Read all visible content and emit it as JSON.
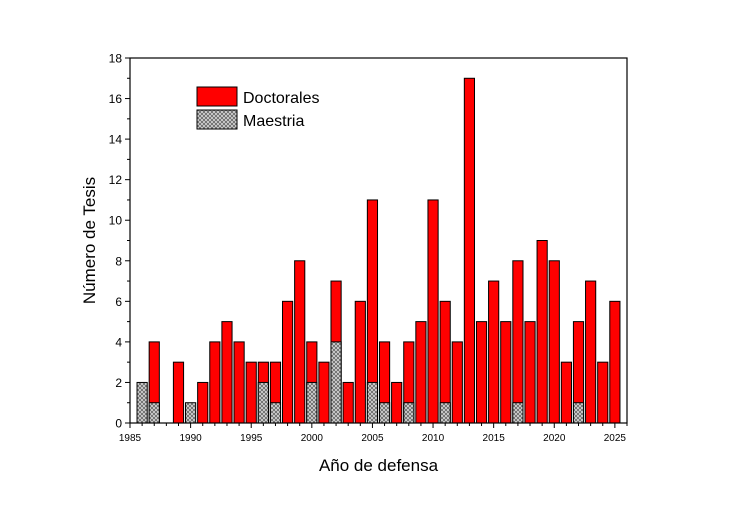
{
  "chart_data": {
    "type": "bar",
    "xlabel": "Año de defensa",
    "ylabel": "Número de Tesis",
    "xlim": [
      1985,
      2026
    ],
    "ylim": [
      0,
      18
    ],
    "x_ticks": [
      1985,
      1990,
      1995,
      2000,
      2005,
      2010,
      2015,
      2020,
      2025
    ],
    "y_ticks": [
      0,
      2,
      4,
      6,
      8,
      10,
      12,
      14,
      16,
      18
    ],
    "grid": false,
    "legend_position": "top-left",
    "series": [
      {
        "name": "Doctorales",
        "color": "#ff0000",
        "pattern": "solid",
        "data": [
          [
            1987,
            4
          ],
          [
            1989,
            3
          ],
          [
            1991,
            2
          ],
          [
            1992,
            4
          ],
          [
            1993,
            5
          ],
          [
            1994,
            4
          ],
          [
            1995,
            3
          ],
          [
            1996,
            3
          ],
          [
            1997,
            3
          ],
          [
            1998,
            6
          ],
          [
            1999,
            8
          ],
          [
            2000,
            4
          ],
          [
            2001,
            3
          ],
          [
            2002,
            7
          ],
          [
            2003,
            2
          ],
          [
            2004,
            6
          ],
          [
            2005,
            11
          ],
          [
            2006,
            4
          ],
          [
            2007,
            2
          ],
          [
            2008,
            4
          ],
          [
            2009,
            5
          ],
          [
            2010,
            11
          ],
          [
            2011,
            6
          ],
          [
            2012,
            4
          ],
          [
            2013,
            17
          ],
          [
            2014,
            5
          ],
          [
            2015,
            7
          ],
          [
            2016,
            5
          ],
          [
            2017,
            8
          ],
          [
            2018,
            5
          ],
          [
            2019,
            9
          ],
          [
            2020,
            8
          ],
          [
            2021,
            3
          ],
          [
            2022,
            5
          ],
          [
            2023,
            7
          ],
          [
            2024,
            3
          ],
          [
            2025,
            6
          ]
        ]
      },
      {
        "name": "Maestria",
        "color": "#c0c0c0",
        "pattern": "crosshatch",
        "data": [
          [
            1986,
            2
          ],
          [
            1987,
            1
          ],
          [
            1990,
            1
          ],
          [
            1996,
            2
          ],
          [
            1997,
            1
          ],
          [
            2000,
            2
          ],
          [
            2002,
            4
          ],
          [
            2005,
            2
          ],
          [
            2006,
            1
          ],
          [
            2008,
            1
          ],
          [
            2011,
            1
          ],
          [
            2017,
            1
          ],
          [
            2022,
            1
          ]
        ]
      }
    ]
  }
}
